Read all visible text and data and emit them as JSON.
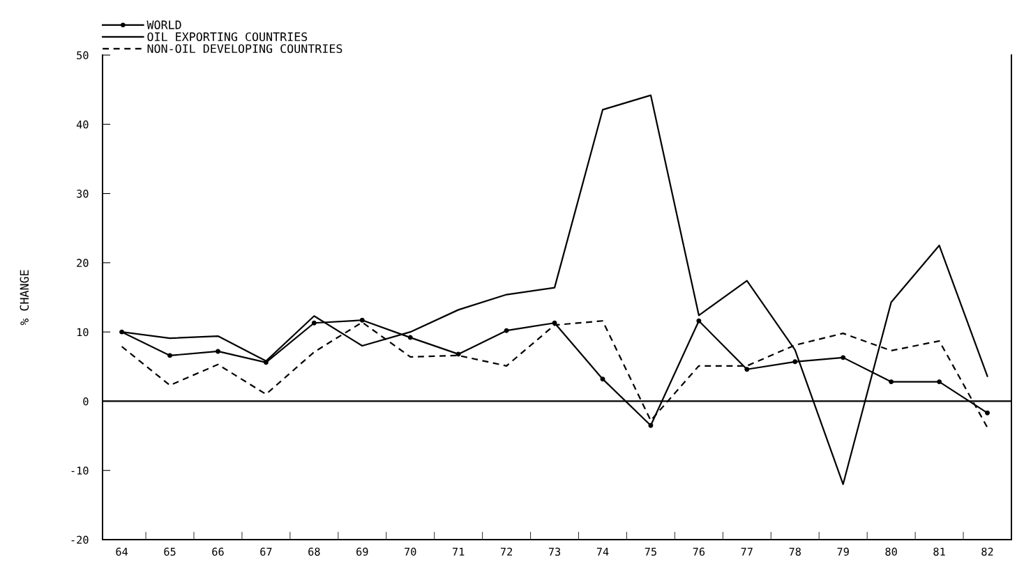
{
  "chart_data": {
    "type": "line",
    "categories": [
      "64",
      "65",
      "66",
      "67",
      "68",
      "69",
      "70",
      "71",
      "72",
      "73",
      "74",
      "75",
      "76",
      "77",
      "78",
      "79",
      "80",
      "81",
      "82"
    ],
    "series": [
      {
        "name": "WORLD",
        "color": "#000000",
        "marker": "circle",
        "line_style": "solid",
        "values": [
          10.0,
          6.6,
          7.2,
          5.6,
          11.3,
          11.7,
          9.2,
          6.8,
          10.2,
          11.3,
          3.2,
          -3.5,
          11.6,
          4.6,
          5.7,
          6.3,
          2.8,
          2.8,
          -1.7
        ]
      },
      {
        "name": "OIL EXPORTING COUNTRIES",
        "color": "#000000",
        "marker": "none",
        "line_style": "solid",
        "values": [
          10.0,
          9.1,
          9.4,
          5.8,
          12.3,
          8.0,
          10.0,
          13.2,
          15.4,
          16.4,
          42.1,
          44.2,
          12.4,
          17.4,
          7.4,
          -12.0,
          14.3,
          22.5,
          3.6
        ]
      },
      {
        "name": "NON-OIL DEVELOPING COUNTRIES",
        "color": "#000000",
        "marker": "none",
        "line_style": "dashed",
        "values": [
          7.9,
          2.3,
          5.3,
          1.0,
          7.1,
          11.4,
          6.4,
          6.6,
          5.1,
          11.0,
          11.6,
          -2.8,
          5.1,
          5.1,
          8.1,
          9.8,
          7.3,
          8.7,
          -3.8
        ]
      }
    ],
    "ylabel": "% CHANGE",
    "ylim": [
      -20,
      50
    ],
    "yticks": [
      -20,
      -10,
      0,
      10,
      20,
      30,
      40,
      50
    ],
    "ref_lines": [
      {
        "axis": "y",
        "value": 0,
        "color": "#000000",
        "line_style": "solid"
      }
    ],
    "grid": false,
    "legend": "top left"
  }
}
